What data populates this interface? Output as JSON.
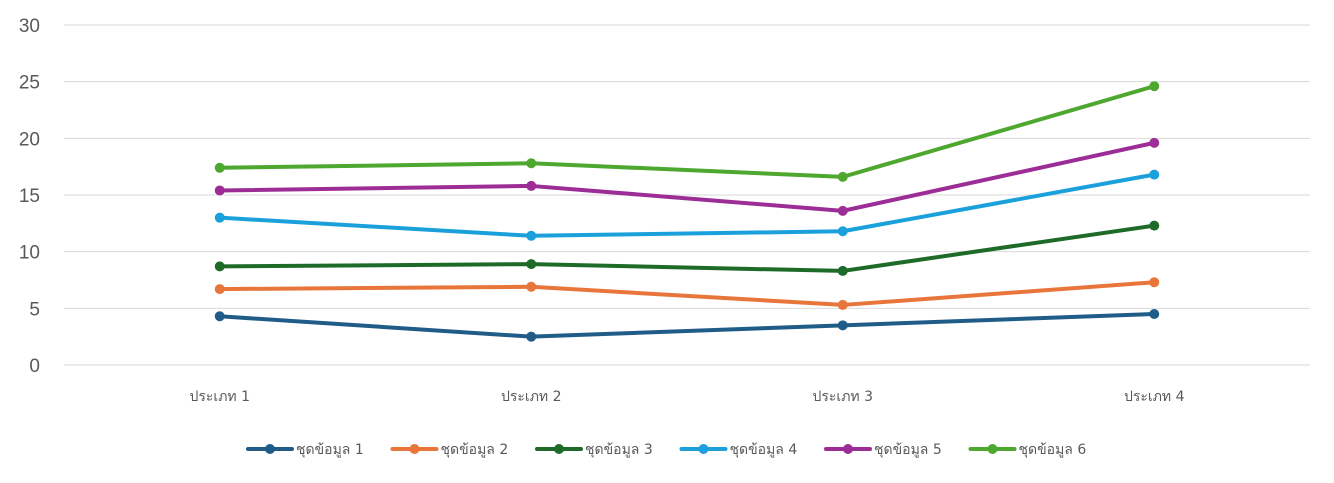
{
  "chart_data": {
    "type": "line",
    "title": "",
    "xlabel": "",
    "ylabel": "",
    "categories": [
      "ประเภท 1",
      "ประเภท 2",
      "ประเภท 3",
      "ประเภท 4"
    ],
    "ylim": [
      0,
      30
    ],
    "yticks": [
      0,
      5,
      10,
      15,
      20,
      25,
      30
    ],
    "grid": true,
    "legend_position": "bottom",
    "series": [
      {
        "name": "ชุดข้อมูล 1",
        "color": "#1f5c87",
        "values": [
          4.3,
          2.5,
          3.5,
          4.5
        ]
      },
      {
        "name": "ชุดข้อมูล 2",
        "color": "#e8763a",
        "values": [
          6.7,
          6.9,
          5.3,
          7.3
        ]
      },
      {
        "name": "ชุดข้อมูล 3",
        "color": "#1e6b29",
        "values": [
          8.7,
          8.9,
          8.3,
          12.3
        ]
      },
      {
        "name": "ชุดข้อมูล 4",
        "color": "#1aa1dc",
        "values": [
          13.0,
          11.4,
          11.8,
          16.8
        ]
      },
      {
        "name": "ชุดข้อมูล 5",
        "color": "#9c2d96",
        "values": [
          15.4,
          15.8,
          13.6,
          19.6
        ]
      },
      {
        "name": "ชุดข้อมูล 6",
        "color": "#4ea72e",
        "values": [
          17.4,
          17.8,
          16.6,
          24.6
        ]
      }
    ]
  }
}
